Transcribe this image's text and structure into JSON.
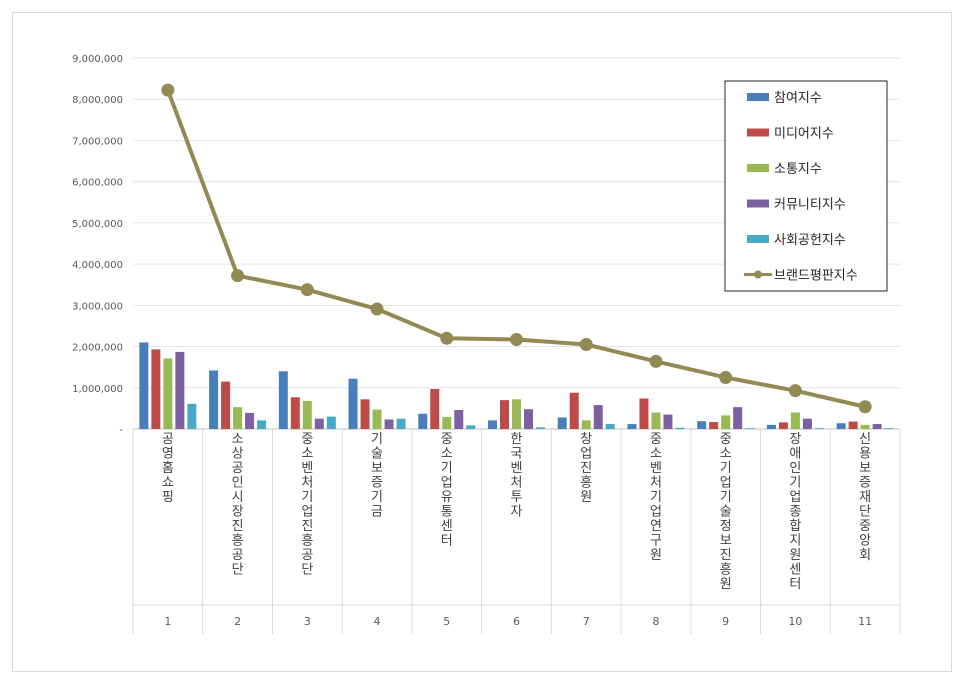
{
  "chart_data": {
    "type": "bar",
    "categories": [
      "1",
      "2",
      "3",
      "4",
      "5",
      "6",
      "7",
      "8",
      "9",
      "10",
      "11"
    ],
    "category_names": [
      "공영홈쇼핑",
      "소상공인시장진흥공단",
      "중소벤처기업진흥공단",
      "기술보증기금",
      "중소기업유통센터",
      "한국벤처투자",
      "창업진흥원",
      "중소벤처기업연구원",
      "중소기업기술정보진흥원",
      "장애인기업종합지원센터",
      "신용보증재단중앙회"
    ],
    "ylim": [
      0,
      9000000
    ],
    "yticks": [
      "-",
      "1,000,000",
      "2,000,000",
      "3,000,000",
      "4,000,000",
      "5,000,000",
      "6,000,000",
      "7,000,000",
      "8,000,000",
      "9,000,000"
    ],
    "grid": true,
    "legend_position": "top-right",
    "series": [
      {
        "name": "참여지수",
        "type": "bar",
        "color": "#4a7ebb",
        "values": [
          2100000,
          1420000,
          1400000,
          1220000,
          370000,
          210000,
          280000,
          120000,
          190000,
          100000,
          140000
        ]
      },
      {
        "name": "미디어지수",
        "type": "bar",
        "color": "#be4b48",
        "values": [
          1930000,
          1150000,
          770000,
          720000,
          970000,
          700000,
          880000,
          740000,
          170000,
          160000,
          180000
        ]
      },
      {
        "name": "소통지수",
        "type": "bar",
        "color": "#98b954",
        "values": [
          1710000,
          530000,
          680000,
          470000,
          290000,
          720000,
          210000,
          400000,
          330000,
          400000,
          100000
        ]
      },
      {
        "name": "커뮤니티지수",
        "type": "bar",
        "color": "#7d60a0",
        "values": [
          1870000,
          390000,
          250000,
          230000,
          460000,
          480000,
          580000,
          350000,
          530000,
          250000,
          120000
        ]
      },
      {
        "name": "사회공헌지수",
        "type": "bar",
        "color": "#46aac5",
        "values": [
          610000,
          210000,
          300000,
          250000,
          90000,
          40000,
          120000,
          30000,
          20000,
          20000,
          20000
        ]
      },
      {
        "name": "브랜드평판지수",
        "type": "line",
        "color": "#938953",
        "values": [
          8220000,
          3720000,
          3380000,
          2910000,
          2200000,
          2170000,
          2050000,
          1640000,
          1250000,
          930000,
          540000
        ]
      }
    ]
  }
}
